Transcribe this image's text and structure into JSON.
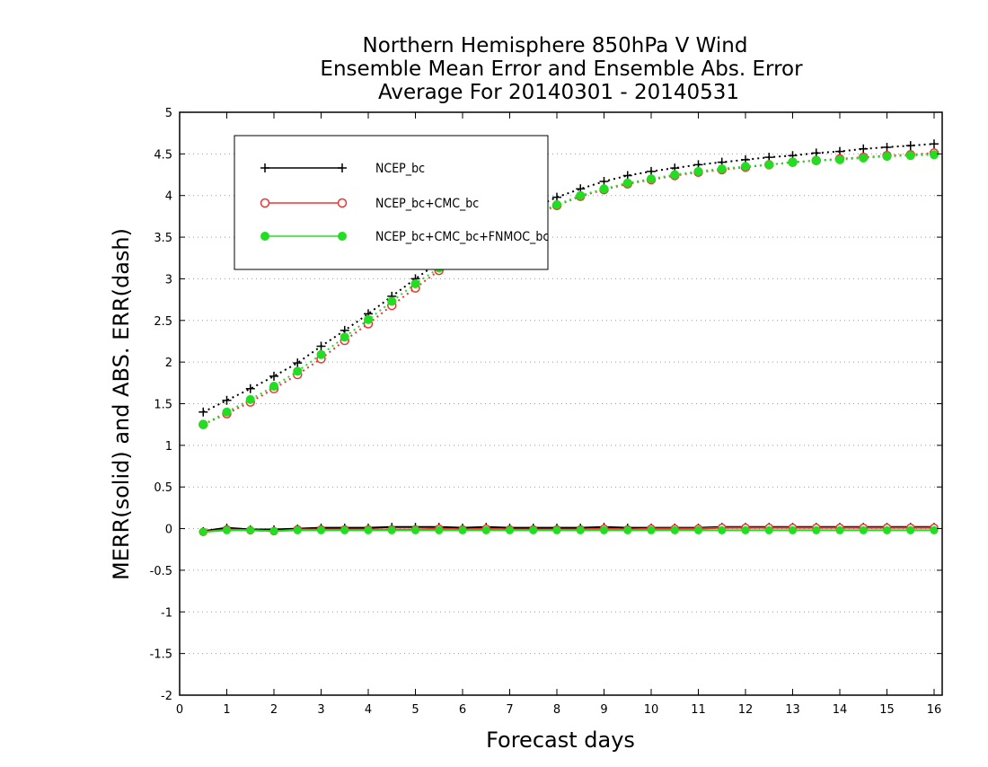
{
  "chart_data": {
    "type": "line",
    "title_lines": [
      "Northern Hemisphere 850hPa V Wind",
      "Ensemble Mean Error and Ensemble Abs. Error",
      "Average For 20140301 - 20140531"
    ],
    "xlabel": "Forecast days",
    "ylabel": "MERR(solid) and ABS. ERR(dash)",
    "xlim": [
      0,
      16.2
    ],
    "ylim": [
      -2,
      5
    ],
    "x_ticks": [
      0,
      1,
      2,
      3,
      4,
      5,
      6,
      7,
      8,
      9,
      10,
      11,
      12,
      13,
      14,
      15,
      16
    ],
    "y_ticks": [
      -2,
      -1.5,
      -1,
      -0.5,
      0,
      0.5,
      1,
      1.5,
      2,
      2.5,
      3,
      3.5,
      4,
      4.5,
      5
    ],
    "y_tick_labels": [
      "-2",
      "-1.5",
      "-1",
      "-0.5",
      "0",
      "0.5",
      "1",
      "1.5",
      "2",
      "2.5",
      "3",
      "3.5",
      "4",
      "4.5",
      "5"
    ],
    "grid": "horizontal dotted",
    "legend_position": "top-left",
    "x": [
      0.5,
      1,
      1.5,
      2,
      2.5,
      3,
      3.5,
      4,
      4.5,
      5,
      5.5,
      6,
      6.5,
      7,
      7.5,
      8,
      8.5,
      9,
      9.5,
      10,
      10.5,
      11,
      11.5,
      12,
      12.5,
      13,
      13.5,
      14,
      14.5,
      15,
      15.5,
      16
    ],
    "series": [
      {
        "name": "NCEP_bc",
        "color": "#000000",
        "marker": "plus",
        "abs_err": [
          1.4,
          1.54,
          1.68,
          1.83,
          1.99,
          2.19,
          2.38,
          2.58,
          2.79,
          3.0,
          3.2,
          3.38,
          3.55,
          3.7,
          3.85,
          3.98,
          4.08,
          4.17,
          4.24,
          4.29,
          4.33,
          4.37,
          4.4,
          4.43,
          4.46,
          4.48,
          4.51,
          4.53,
          4.56,
          4.58,
          4.6,
          4.62
        ],
        "mean_err": [
          -0.03,
          0.01,
          -0.01,
          -0.01,
          0.0,
          0.01,
          0.01,
          0.01,
          0.02,
          0.02,
          0.02,
          0.01,
          0.02,
          0.01,
          0.01,
          0.01,
          0.01,
          0.02,
          0.01,
          0.01,
          0.01,
          0.01,
          0.02,
          0.02,
          0.02,
          0.02,
          0.02,
          0.02,
          0.02,
          0.02,
          0.02,
          0.02
        ]
      },
      {
        "name": "NCEP_bc+CMC_bc",
        "color": "#ee3333",
        "marker": "circle-open",
        "abs_err": [
          1.25,
          1.38,
          1.52,
          1.68,
          1.85,
          2.04,
          2.26,
          2.46,
          2.68,
          2.89,
          3.1,
          3.29,
          3.47,
          3.62,
          3.76,
          3.88,
          3.99,
          4.07,
          4.14,
          4.19,
          4.24,
          4.28,
          4.31,
          4.34,
          4.37,
          4.4,
          4.42,
          4.44,
          4.46,
          4.48,
          4.49,
          4.51
        ],
        "mean_err": [
          -0.04,
          -0.01,
          -0.02,
          -0.03,
          -0.01,
          -0.01,
          -0.01,
          -0.01,
          -0.01,
          -0.01,
          0.0,
          -0.01,
          0.0,
          -0.01,
          -0.01,
          -0.01,
          -0.01,
          0.0,
          -0.01,
          0.0,
          0.0,
          0.0,
          0.01,
          0.01,
          0.01,
          0.01,
          0.01,
          0.01,
          0.01,
          0.01,
          0.01,
          0.01
        ]
      },
      {
        "name": "NCEP_bc+CMC_bc+FNMOC_bc",
        "color": "#22dd22",
        "marker": "circle-filled",
        "abs_err": [
          1.25,
          1.4,
          1.55,
          1.71,
          1.89,
          2.09,
          2.3,
          2.51,
          2.73,
          2.94,
          3.13,
          3.32,
          3.49,
          3.64,
          3.77,
          3.89,
          4.0,
          4.08,
          4.15,
          4.2,
          4.25,
          4.29,
          4.32,
          4.35,
          4.37,
          4.4,
          4.42,
          4.43,
          4.45,
          4.47,
          4.48,
          4.49
        ],
        "mean_err": [
          -0.04,
          -0.02,
          -0.02,
          -0.03,
          -0.02,
          -0.02,
          -0.02,
          -0.02,
          -0.02,
          -0.02,
          -0.02,
          -0.02,
          -0.02,
          -0.02,
          -0.02,
          -0.02,
          -0.02,
          -0.02,
          -0.02,
          -0.02,
          -0.02,
          -0.02,
          -0.02,
          -0.02,
          -0.02,
          -0.02,
          -0.02,
          -0.02,
          -0.02,
          -0.02,
          -0.02,
          -0.02
        ]
      }
    ]
  }
}
